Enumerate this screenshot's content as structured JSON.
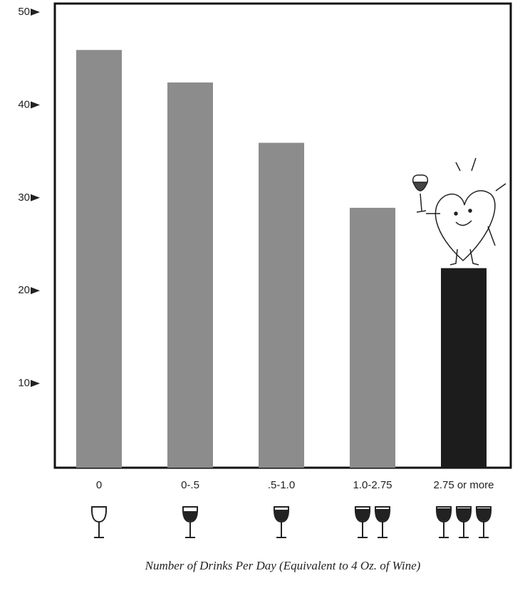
{
  "chart_data": {
    "type": "bar",
    "x_label": "Number of Drinks Per Day (Equivalent to 4 Oz. of Wine)",
    "categories": [
      "0",
      "0-.5",
      ".5-1.0",
      "1.0-2.75",
      "2.75 or more"
    ],
    "values": [
      45,
      41.5,
      35,
      28,
      21.5
    ],
    "colors": [
      "#8c8c8c",
      "#8c8c8c",
      "#8c8c8c",
      "#8c8c8c",
      "#1c1c1c"
    ],
    "ylim": [
      0,
      50
    ],
    "yticks": [
      10,
      20,
      30,
      40,
      50
    ],
    "grid": false
  }
}
